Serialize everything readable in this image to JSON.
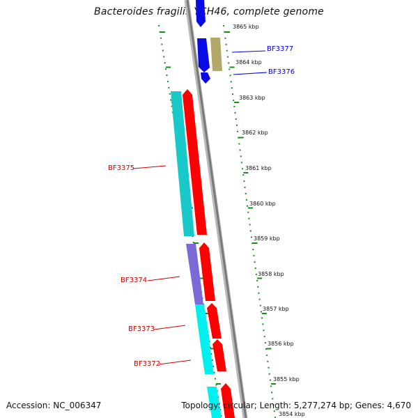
{
  "title": "Bacteroides fragilis YCH46, complete genome",
  "accession_text": "Accession: NC_006347",
  "summary_text": "Topology: circular; Length: 5,277,274 bp; Genes: 4,670",
  "kbp_labels": [
    "3865 kbp",
    "3864 kbp",
    "3863 kbp",
    "3862 kbp",
    "3861 kbp",
    "3860 kbp",
    "3859 kbp",
    "3858 kbp",
    "3857 kbp",
    "3856 kbp",
    "3855 kbp",
    "3854 kbp"
  ],
  "genes": [
    {
      "name": "BF3377",
      "color": "#0000dd"
    },
    {
      "name": "BF3376",
      "color": "#0000dd"
    },
    {
      "name": "BF3375",
      "color": "#cc0000"
    },
    {
      "name": "BF3374",
      "color": "#cc0000"
    },
    {
      "name": "BF3373",
      "color": "#cc0000"
    },
    {
      "name": "BF3372",
      "color": "#cc0000"
    }
  ],
  "colors": {
    "backbone": "#8a8a8a",
    "tick": "#1a8a1a",
    "blue_gene": "#0a0ae6",
    "red_gene": "#ff0000",
    "cyan_feature": "#19c8c8",
    "bright_cyan_feature": "#00f0f0",
    "purple_feature": "#7a6ad6",
    "olive_feature": "#b2a86a"
  }
}
